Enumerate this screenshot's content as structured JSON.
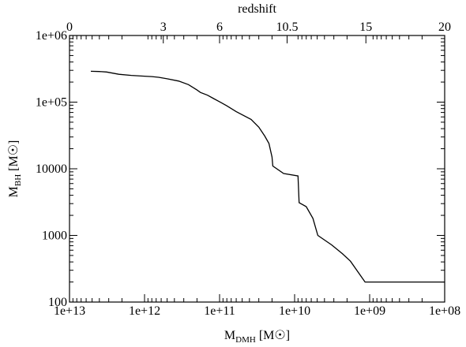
{
  "chart_data": {
    "type": "line",
    "x_scale": "log",
    "y_scale": "log",
    "x_reversed": true,
    "xlabel": {
      "main": "M",
      "sub": "DMH",
      "unit": "[M",
      "unit_close": "]"
    },
    "ylabel": {
      "main": "M",
      "sub": "BH",
      "unit": "[M",
      "unit_close": "]"
    },
    "top_label": "redshift",
    "xlim": [
      10000000000000.0,
      100000000.0
    ],
    "ylim": [
      100,
      1000000
    ],
    "x_ticks": [
      {
        "value": 10000000000000.0,
        "label": "1e+13"
      },
      {
        "value": 1000000000000.0,
        "label": "1e+12"
      },
      {
        "value": 100000000000.0,
        "label": "1e+11"
      },
      {
        "value": 10000000000.0,
        "label": "1e+10"
      },
      {
        "value": 1000000000.0,
        "label": "1e+09"
      },
      {
        "value": 100000000.0,
        "label": "1e+08"
      }
    ],
    "y_ticks": [
      {
        "value": 100,
        "label": "100"
      },
      {
        "value": 1000,
        "label": "1000"
      },
      {
        "value": 10000,
        "label": "10000"
      },
      {
        "value": 100000,
        "label": "1e+05"
      },
      {
        "value": 1000000,
        "label": "1e+06"
      }
    ],
    "top_ticks": [
      {
        "frac": 0.0,
        "label": "0"
      },
      {
        "frac": 0.25,
        "label": "3"
      },
      {
        "frac": 0.4,
        "label": "6"
      },
      {
        "frac": 0.58,
        "label": "10.5"
      },
      {
        "frac": 0.79,
        "label": "15"
      },
      {
        "frac": 1.0,
        "label": "20"
      }
    ],
    "series": [
      {
        "color": "#000000",
        "points": [
          [
            5200000000000.0,
            290000
          ],
          [
            4000000000000.0,
            288000
          ],
          [
            3200000000000.0,
            283000
          ],
          [
            2200000000000.0,
            262000
          ],
          [
            1500000000000.0,
            252000
          ],
          [
            1000000000000.0,
            245000
          ],
          [
            800000000000.0,
            242000
          ],
          [
            650000000000.0,
            236000
          ],
          [
            500000000000.0,
            224000
          ],
          [
            350000000000.0,
            207000
          ],
          [
            260000000000.0,
            183000
          ],
          [
            200000000000.0,
            152000
          ],
          [
            180000000000.0,
            140000
          ],
          [
            145000000000.0,
            127000
          ],
          [
            120000000000.0,
            113000
          ],
          [
            95000000000.0,
            98000
          ],
          [
            80000000000.0,
            88000
          ],
          [
            60000000000.0,
            72000
          ],
          [
            38000000000.0,
            55000
          ],
          [
            30000000000.0,
            42000
          ],
          [
            25000000000.0,
            31000
          ],
          [
            22000000000.0,
            24000
          ],
          [
            20000000000.0,
            15000
          ],
          [
            19500000000.0,
            11000
          ],
          [
            14000000000.0,
            8500
          ],
          [
            9000000000.0,
            7800
          ],
          [
            8700000000.0,
            3100
          ],
          [
            7000000000.0,
            2700
          ],
          [
            5700000000.0,
            1800
          ],
          [
            4900000000.0,
            1000
          ],
          [
            3200000000.0,
            720
          ],
          [
            2300000000.0,
            530
          ],
          [
            1800000000.0,
            410
          ],
          [
            1150000000.0,
            200
          ],
          [
            800000000.0,
            200
          ],
          [
            100000000.0,
            200
          ]
        ]
      }
    ]
  }
}
